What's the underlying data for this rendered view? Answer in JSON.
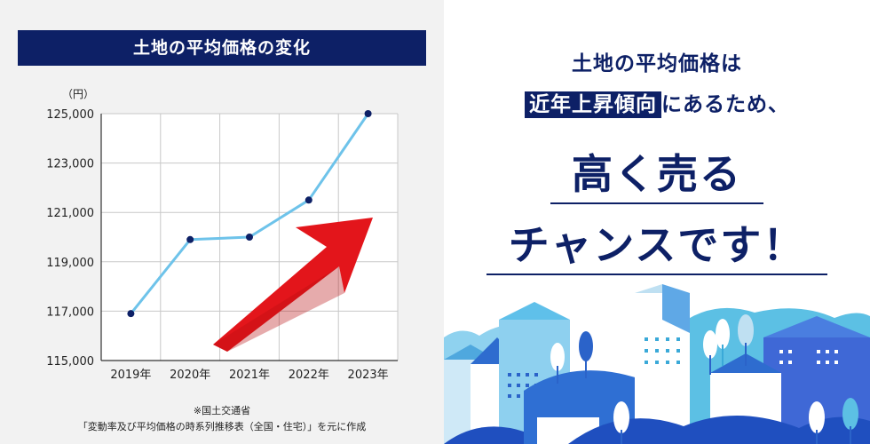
{
  "colors": {
    "navy": "#0d2066",
    "line": "#6ec3ea",
    "arrow": "#e3151b",
    "panel": "#f2f2f2"
  },
  "chart_data": {
    "type": "line",
    "title": "土地の平均価格の変化",
    "unit": "（円）",
    "categories": [
      "2019年",
      "2020年",
      "2021年",
      "2022年",
      "2023年"
    ],
    "values": [
      116900,
      119900,
      120000,
      121500,
      125000
    ],
    "ylim": [
      115000,
      125000
    ],
    "yticks": [
      "125,000",
      "123,000",
      "121,000",
      "119,000",
      "117,000",
      "115,000"
    ],
    "ytick_values": [
      125000,
      123000,
      121000,
      119000,
      117000,
      115000
    ],
    "grid": true,
    "annotation": "red-up-arrow"
  },
  "source": {
    "line1": "※国土交通省",
    "line2": "「変動率及び平均価格の時系列推移表（全国・住宅）」を元に作成"
  },
  "headline": {
    "line1": "土地の平均価格は",
    "highlight": "近年上昇傾向",
    "line2_rest": "にあるため、",
    "big1": "高く売る",
    "big2": "チャンスです！"
  }
}
